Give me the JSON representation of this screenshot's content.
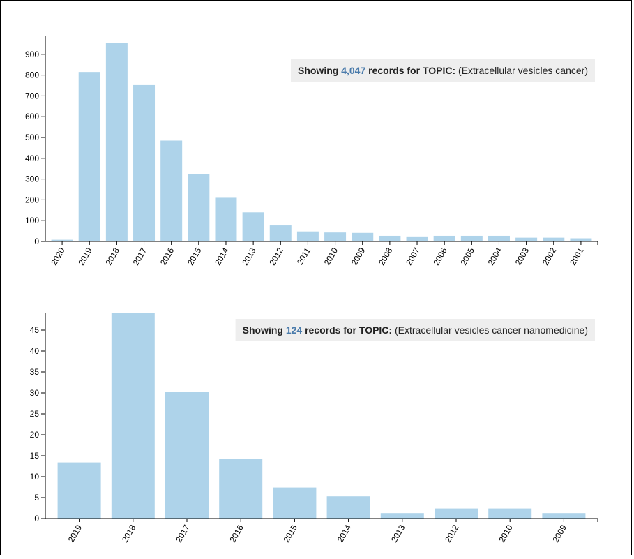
{
  "colors": {
    "bar": "#aed3ea",
    "highlight": "#4a7bab",
    "banner_bg": "#eeeeee",
    "axis": "#000000"
  },
  "chart_data": [
    {
      "type": "bar",
      "banner": {
        "prefix": "Showing ",
        "count": "4,047",
        "mid": " records for ",
        "topic_label": "TOPIC:",
        "query": " (Extracellular vesicles cancer)"
      },
      "categories": [
        "2020",
        "2019",
        "2018",
        "2017",
        "2016",
        "2015",
        "2014",
        "2013",
        "2012",
        "2011",
        "2010",
        "2009",
        "2008",
        "2007",
        "2006",
        "2005",
        "2004",
        "2003",
        "2002",
        "2001"
      ],
      "values": [
        8,
        815,
        955,
        752,
        485,
        323,
        210,
        140,
        77,
        48,
        43,
        41,
        27,
        24,
        27,
        27,
        27,
        18,
        18,
        15
      ],
      "yticks": [
        0,
        100,
        200,
        300,
        400,
        500,
        600,
        700,
        800,
        900
      ],
      "ylim": [
        0,
        990
      ],
      "xlabel": "",
      "ylabel": "",
      "title": ""
    },
    {
      "type": "bar",
      "banner": {
        "prefix": "Showing ",
        "count": "124",
        "mid": " records for ",
        "topic_label": "TOPIC:",
        "query": " (Extracellular vesicles cancer nanomedicine)"
      },
      "categories": [
        "2019",
        "2018",
        "2017",
        "2016",
        "2015",
        "2014",
        "2013",
        "2012",
        "2010",
        "2009"
      ],
      "values": [
        13.4,
        49,
        30.3,
        14.3,
        7.4,
        5.3,
        1.3,
        2.4,
        2.4,
        1.3
      ],
      "yticks": [
        0,
        5,
        10,
        15,
        20,
        25,
        30,
        35,
        40,
        45
      ],
      "ylim": [
        0,
        49
      ],
      "xlabel": "",
      "ylabel": "",
      "title": ""
    }
  ]
}
